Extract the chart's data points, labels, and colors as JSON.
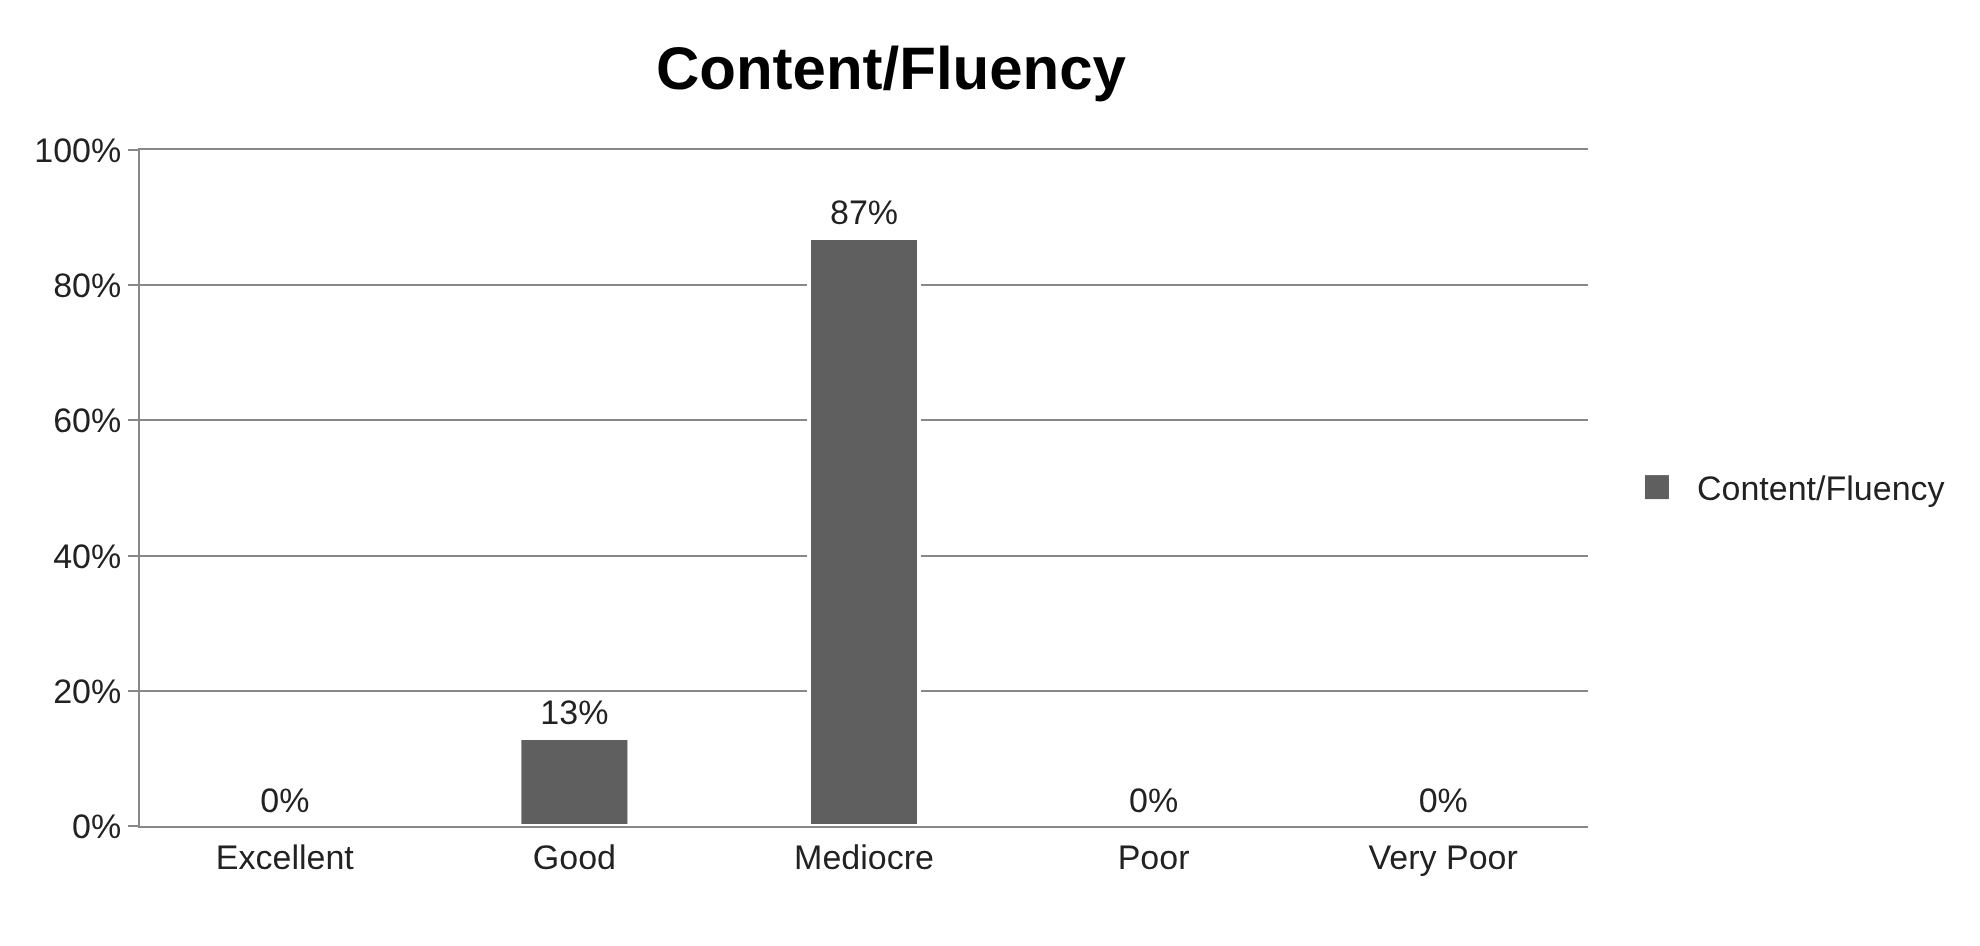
{
  "chart_data": {
    "type": "bar",
    "title": "Content/Fluency",
    "categories": [
      "Excellent",
      "Good",
      "Mediocre",
      "Poor",
      "Very Poor"
    ],
    "series": [
      {
        "name": "Content/Fluency",
        "color": "#5f5f5f",
        "values": [
          0,
          13,
          87,
          0,
          0
        ],
        "value_labels": [
          "0%",
          "13%",
          "87%",
          "0%",
          "0%"
        ]
      }
    ],
    "ylim": [
      0,
      100
    ],
    "yticks": [
      {
        "value": 0,
        "label": "0%"
      },
      {
        "value": 20,
        "label": "20%"
      },
      {
        "value": 40,
        "label": "40%"
      },
      {
        "value": 60,
        "label": "60%"
      },
      {
        "value": 80,
        "label": "80%"
      },
      {
        "value": 100,
        "label": "100%"
      }
    ],
    "grid": "y",
    "legend": "right"
  }
}
